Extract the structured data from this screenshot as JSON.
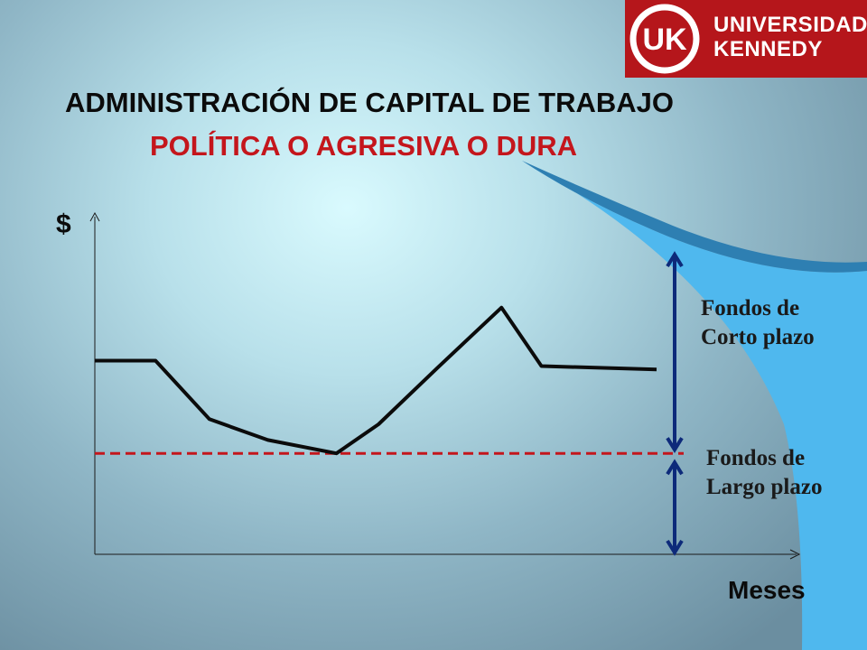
{
  "logo": {
    "mark": "UK",
    "line1": "UNIVERSIDAD",
    "line2": "KENNEDY"
  },
  "title": "ADMINISTRACIÓN DE CAPITAL DE TRABAJO",
  "subtitle": "POLÍTICA O AGRESIVA O DURA",
  "colors": {
    "logo_background": "#b5161b",
    "subtitle": "#c4161c",
    "dashed_line": "#c4161c",
    "arrow": "#0d2a7a",
    "curve": "#0b0b0b",
    "accent_swoosh": "#4fb8ee"
  },
  "chart_data": {
    "type": "line",
    "ylabel": "$",
    "xlabel": "Meses",
    "series": [
      {
        "values_relative": [
          [
            0,
            0.566
          ],
          [
            0.108,
            0.566
          ],
          [
            0.204,
            0.395
          ],
          [
            0.308,
            0.334
          ],
          [
            0.43,
            0.295
          ],
          [
            0.505,
            0.38
          ],
          [
            0.61,
            0.545
          ],
          [
            0.724,
            0.721
          ],
          [
            0.795,
            0.55
          ],
          [
            1.0,
            0.54
          ]
        ]
      }
    ],
    "reference_line": {
      "style": "dashed",
      "value": 0.295,
      "color": "#c4161c"
    },
    "annotations": [
      {
        "text_line1": "Fondos  de",
        "text_line2": "Corto plazo",
        "spans": "above reference line"
      },
      {
        "text_line1": "Fondos de",
        "text_line2": "Largo plazo",
        "spans": "below reference line"
      }
    ]
  }
}
